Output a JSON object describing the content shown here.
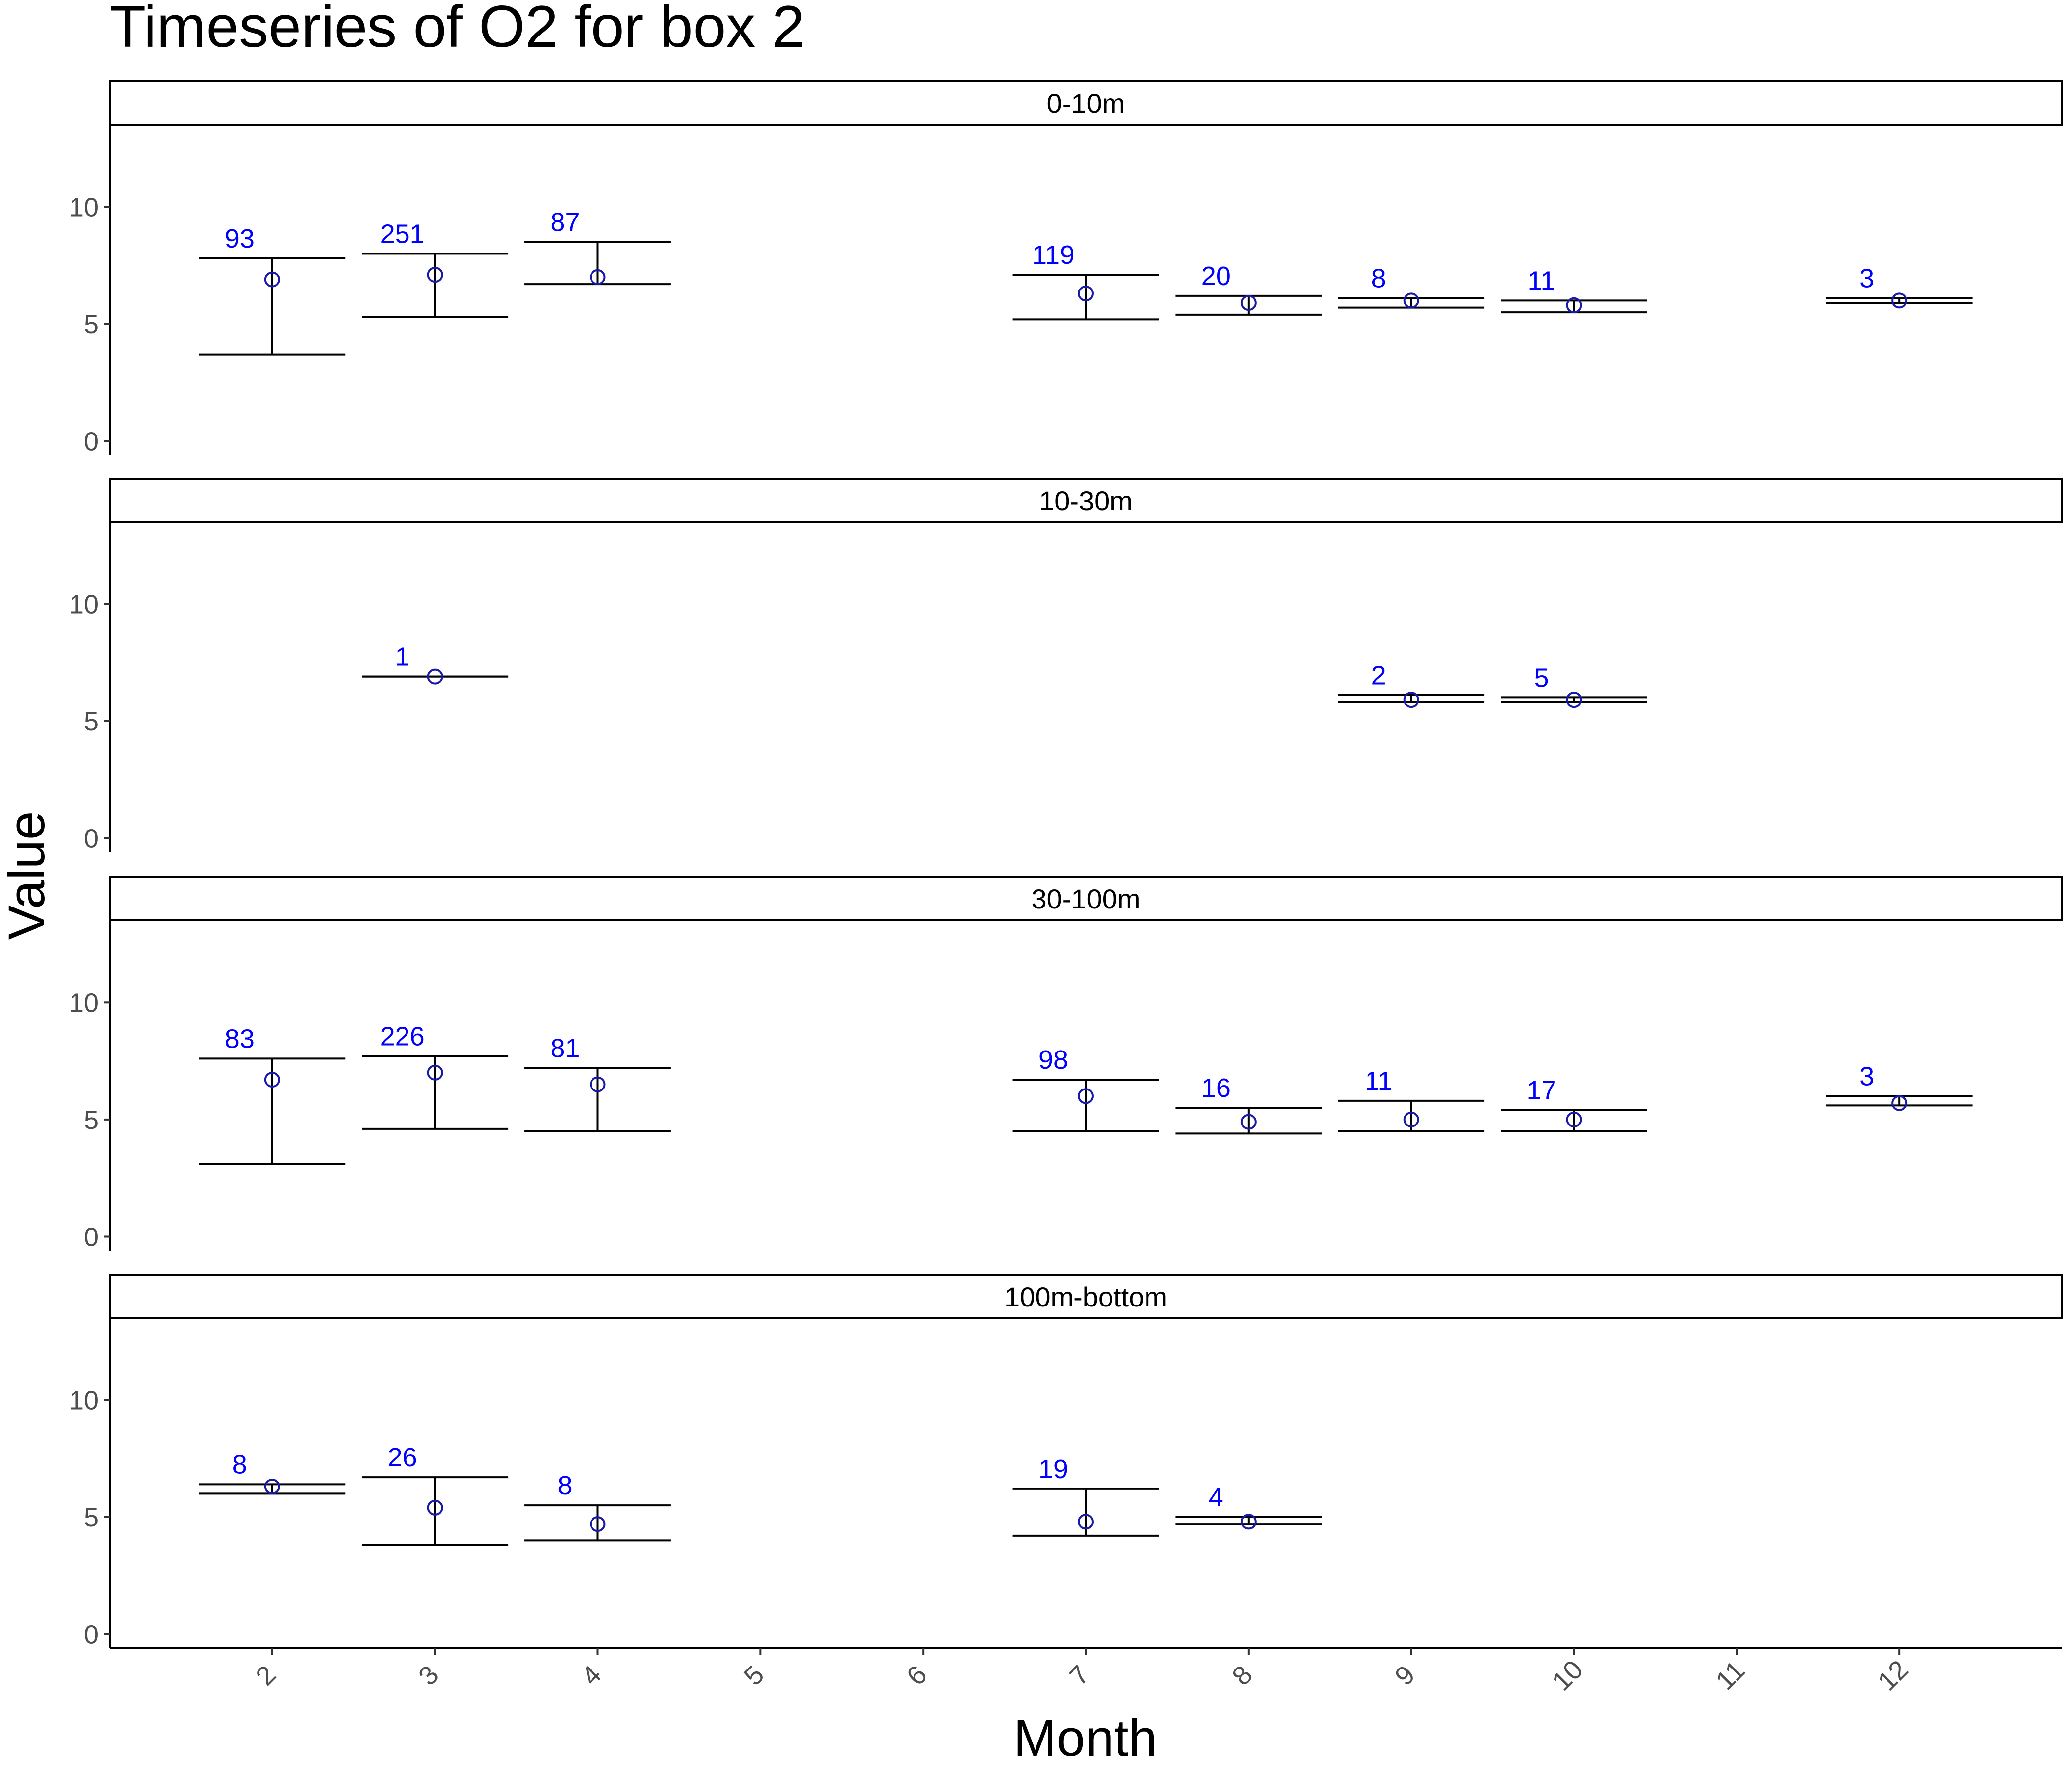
{
  "chart_data": {
    "type": "errorbar",
    "title": "Timeseries of  O2  for box  2",
    "xlabel": "Month",
    "ylabel": "Value",
    "x_ticks": [
      "2",
      "3",
      "4",
      "5",
      "6",
      "7",
      "8",
      "9",
      "10",
      "11",
      "12"
    ],
    "xlim": [
      1.0,
      13.0
    ],
    "ylim": [
      -0.6,
      13.5
    ],
    "y_ticks": [
      0,
      5,
      10
    ],
    "grid": false,
    "colors": {
      "point": "#1a1aa8",
      "count_label": "#0000ff",
      "bars": "#000000"
    },
    "facets": [
      {
        "name": "0-10m",
        "points": [
          {
            "month": 2,
            "mean": 6.9,
            "lo": 3.7,
            "hi": 7.8,
            "n": "93"
          },
          {
            "month": 3,
            "mean": 7.1,
            "lo": 5.3,
            "hi": 8.0,
            "n": "251"
          },
          {
            "month": 4,
            "mean": 7.0,
            "lo": 6.7,
            "hi": 8.5,
            "n": "87"
          },
          {
            "month": 7,
            "mean": 6.3,
            "lo": 5.2,
            "hi": 7.1,
            "n": "119"
          },
          {
            "month": 8,
            "mean": 5.9,
            "lo": 5.4,
            "hi": 6.2,
            "n": "20"
          },
          {
            "month": 9,
            "mean": 6.0,
            "lo": 5.7,
            "hi": 6.1,
            "n": "8"
          },
          {
            "month": 10,
            "mean": 5.8,
            "lo": 5.5,
            "hi": 6.0,
            "n": "11"
          },
          {
            "month": 12,
            "mean": 6.0,
            "lo": 5.9,
            "hi": 6.1,
            "n": "3"
          }
        ]
      },
      {
        "name": "10-30m",
        "points": [
          {
            "month": 3,
            "mean": 6.9,
            "lo": 6.9,
            "hi": 6.9,
            "n": "1"
          },
          {
            "month": 9,
            "mean": 5.9,
            "lo": 5.8,
            "hi": 6.1,
            "n": "2"
          },
          {
            "month": 10,
            "mean": 5.9,
            "lo": 5.8,
            "hi": 6.0,
            "n": "5"
          }
        ]
      },
      {
        "name": "30-100m",
        "points": [
          {
            "month": 2,
            "mean": 6.7,
            "lo": 3.1,
            "hi": 7.6,
            "n": "83"
          },
          {
            "month": 3,
            "mean": 7.0,
            "lo": 4.6,
            "hi": 7.7,
            "n": "226"
          },
          {
            "month": 4,
            "mean": 6.5,
            "lo": 4.5,
            "hi": 7.2,
            "n": "81"
          },
          {
            "month": 7,
            "mean": 6.0,
            "lo": 4.5,
            "hi": 6.7,
            "n": "98"
          },
          {
            "month": 8,
            "mean": 4.9,
            "lo": 4.4,
            "hi": 5.5,
            "n": "16"
          },
          {
            "month": 9,
            "mean": 5.0,
            "lo": 4.5,
            "hi": 5.8,
            "n": "11"
          },
          {
            "month": 10,
            "mean": 5.0,
            "lo": 4.5,
            "hi": 5.4,
            "n": "17"
          },
          {
            "month": 12,
            "mean": 5.7,
            "lo": 5.6,
            "hi": 6.0,
            "n": "3"
          }
        ]
      },
      {
        "name": "100m-bottom",
        "points": [
          {
            "month": 2,
            "mean": 6.3,
            "lo": 6.0,
            "hi": 6.4,
            "n": "8"
          },
          {
            "month": 3,
            "mean": 5.4,
            "lo": 3.8,
            "hi": 6.7,
            "n": "26"
          },
          {
            "month": 4,
            "mean": 4.7,
            "lo": 4.0,
            "hi": 5.5,
            "n": "8"
          },
          {
            "month": 7,
            "mean": 4.8,
            "lo": 4.2,
            "hi": 6.2,
            "n": "19"
          },
          {
            "month": 8,
            "mean": 4.8,
            "lo": 4.7,
            "hi": 5.0,
            "n": "4"
          }
        ]
      }
    ]
  }
}
